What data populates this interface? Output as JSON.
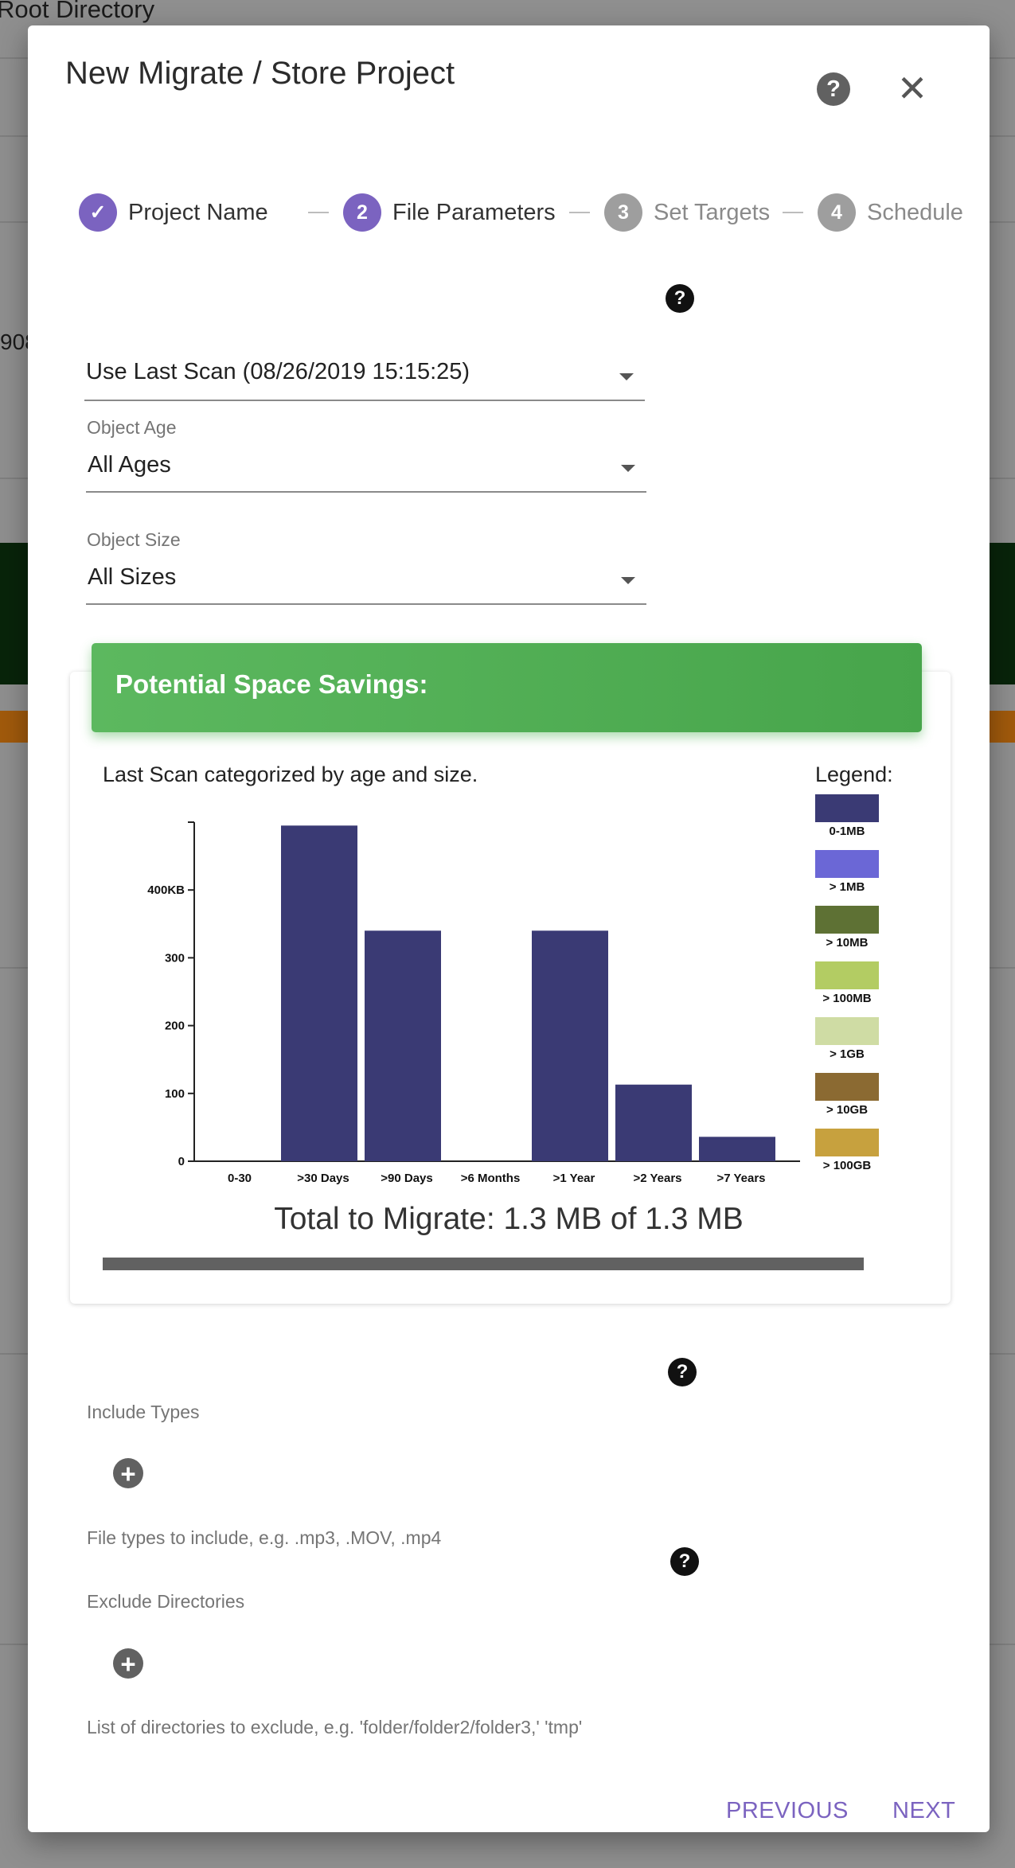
{
  "background": {
    "root_directory": "Root Directory",
    "fragment": "908"
  },
  "dialog": {
    "title": "New Migrate / Store Project",
    "help_glyph": "?",
    "close_glyph": "✕"
  },
  "stepper": {
    "steps": [
      {
        "index": "1",
        "label": "Project Name",
        "state": "complete"
      },
      {
        "index": "2",
        "label": "File Parameters",
        "state": "active"
      },
      {
        "index": "3",
        "label": "Set Targets",
        "state": "inactive"
      },
      {
        "index": "4",
        "label": "Schedule",
        "state": "inactive"
      }
    ],
    "check_glyph": "✓"
  },
  "scan_select": {
    "value": "Use Last Scan (08/26/2019 15:15:25)"
  },
  "object_age": {
    "label": "Object Age",
    "value": "All Ages"
  },
  "object_size": {
    "label": "Object Size",
    "value": "All Sizes"
  },
  "savings": {
    "header": "Potential Space Savings:",
    "subtitle": "Last Scan categorized by age and size.",
    "legend_title": "Legend:",
    "legend": [
      {
        "label": "0-1MB",
        "color": "#3a3a74"
      },
      {
        "label": "> 1MB",
        "color": "#6b67d6"
      },
      {
        "label": "> 10MB",
        "color": "#5e7134"
      },
      {
        "label": "> 100MB",
        "color": "#b3cc63"
      },
      {
        "label": "> 1GB",
        "color": "#cfdca4"
      },
      {
        "label": "> 10GB",
        "color": "#8b6a32"
      },
      {
        "label": "> 100GB",
        "color": "#c7a13e"
      }
    ],
    "total_text": "Total to Migrate: 1.3 MB of 1.3 MB",
    "progress_fraction": 1.0
  },
  "chart_data": {
    "type": "bar",
    "categories": [
      "0-30",
      ">30 Days",
      ">90 Days",
      ">6 Months",
      ">1 Year",
      ">2 Years",
      ">7 Years"
    ],
    "series": [
      {
        "name": "0-1MB",
        "values": [
          0,
          495,
          340,
          0,
          340,
          113,
          36
        ]
      }
    ],
    "yticks": [
      0,
      100,
      200,
      300,
      400
    ],
    "ytick_labels": [
      "0",
      "100",
      "200",
      "300",
      "400KB"
    ],
    "ylim": [
      0,
      500
    ],
    "bar_color": "#3a3a74",
    "grid": false
  },
  "include_types": {
    "label": "Include Types",
    "hint": "File types to include, e.g. .mp3, .MOV, .mp4"
  },
  "exclude_dirs": {
    "label": "Exclude Directories",
    "hint": "List of directories to exclude, e.g. 'folder/folder2/folder3,' 'tmp'"
  },
  "footer": {
    "previous": "PREVIOUS",
    "next": "NEXT"
  },
  "glyphs": {
    "plus": "+",
    "question": "?"
  }
}
